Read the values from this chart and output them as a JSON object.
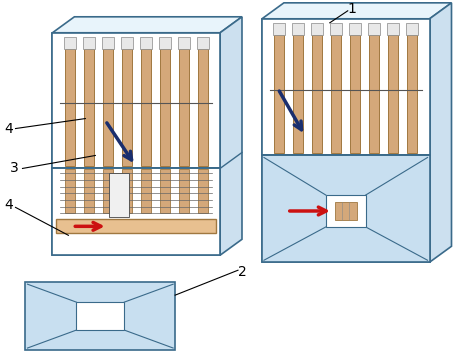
{
  "bg_color": "#ffffff",
  "box_face": "#daedf8",
  "box_top": "#e8f4fb",
  "box_side": "#cce0ef",
  "inner_white": "#ffffff",
  "tube_fill": "#d4a87a",
  "tube_edge": "#a07840",
  "shelf_fill": "#e8c090",
  "shelf_edge": "#a07840",
  "persp_fill": "#c8dff0",
  "blue_arrow": "#1a2e6e",
  "red_arrow": "#cc1111",
  "box_edge": "#3a6a8a",
  "label_fs": 10
}
